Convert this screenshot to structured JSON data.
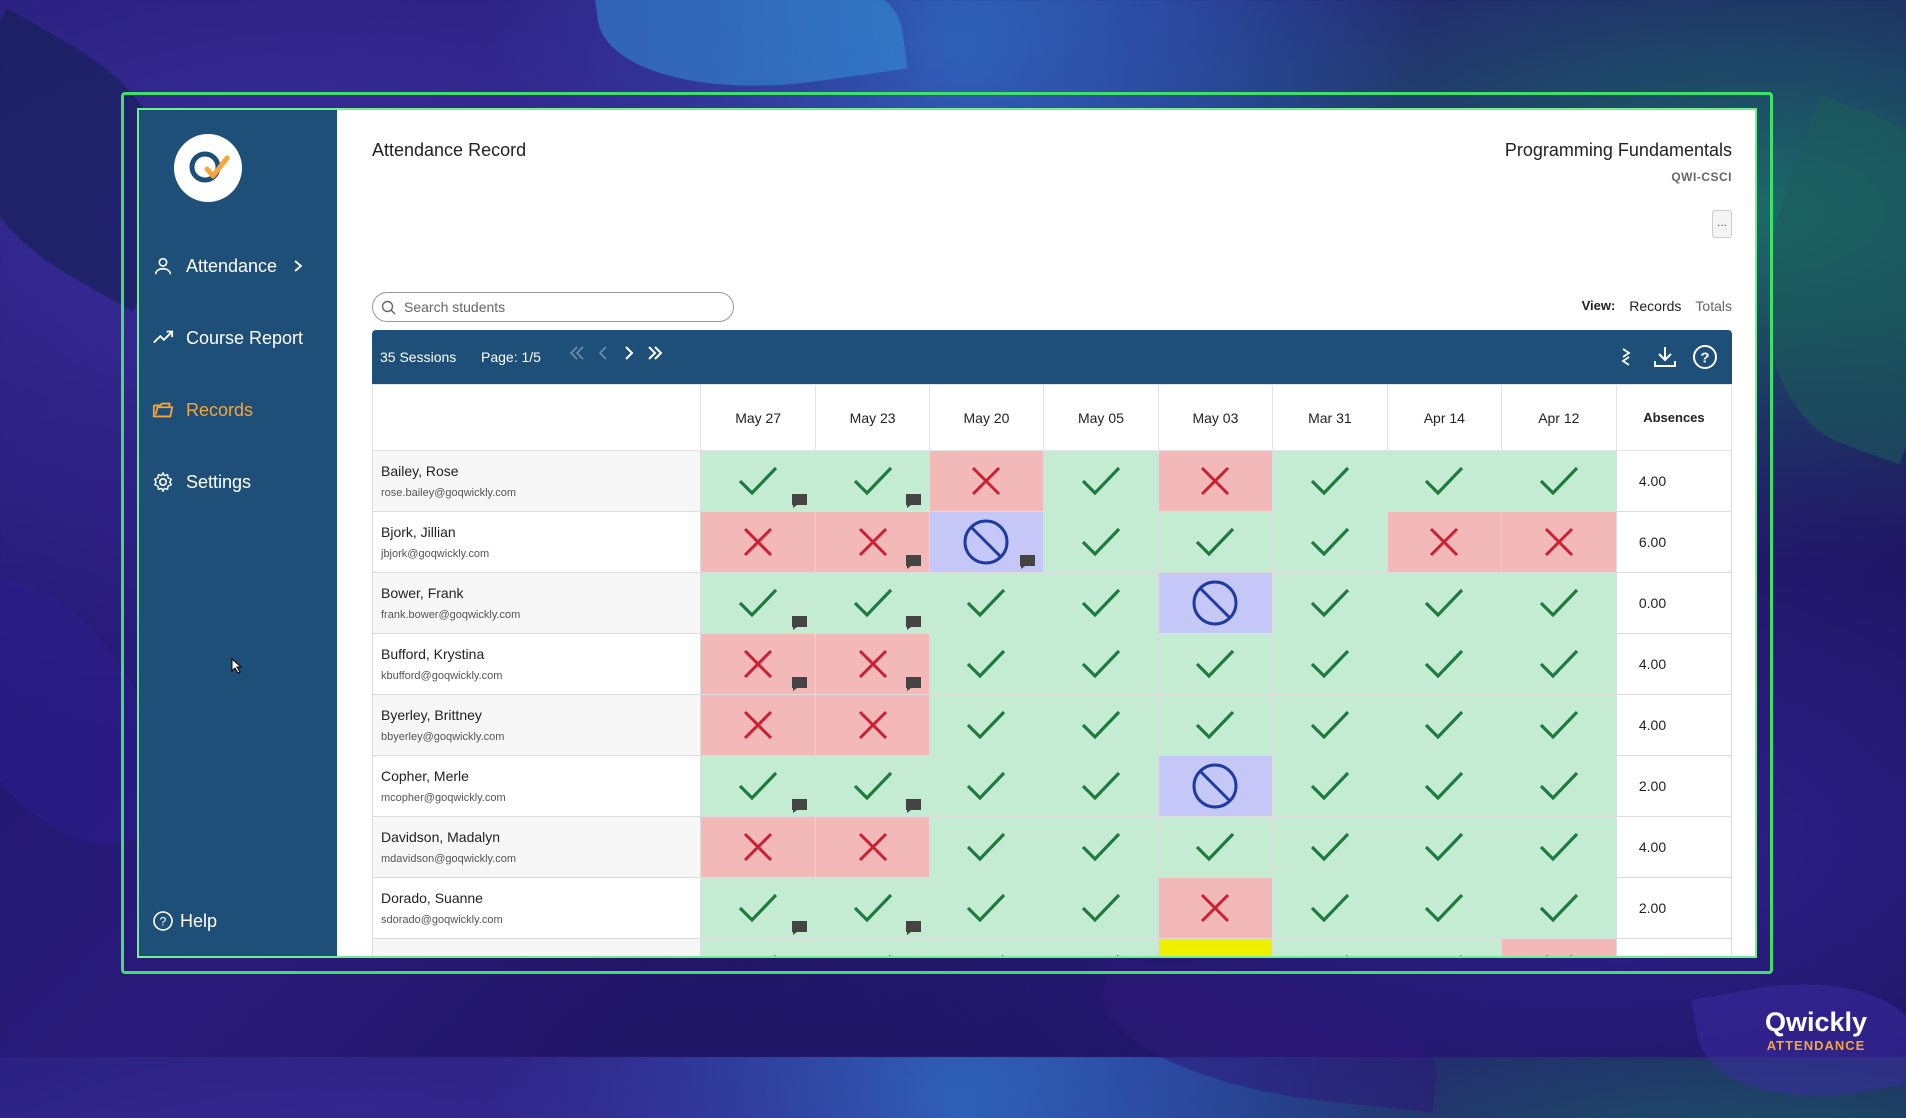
{
  "app": {
    "title": "Attendance Record",
    "course_name": "Programming Fundamentals",
    "course_code": "QWI-CSCI",
    "more_label": "..."
  },
  "sidebar": {
    "items": [
      {
        "label": "Attendance",
        "icon": "person-icon",
        "active": false
      },
      {
        "label": "Course Report",
        "icon": "trend-icon",
        "active": false
      },
      {
        "label": "Records",
        "icon": "folder-icon",
        "active": true
      },
      {
        "label": "Settings",
        "icon": "gear-icon",
        "active": false
      }
    ],
    "help_label": "Help"
  },
  "search": {
    "placeholder": "Search students"
  },
  "view": {
    "label": "View:",
    "records": "Records",
    "totals": "Totals"
  },
  "toolbar": {
    "sessions": "35 Sessions",
    "page": "Page: 1/5"
  },
  "table": {
    "columns": [
      "May 27",
      "May 23",
      "May 20",
      "May 05",
      "May 03",
      "Mar 31",
      "Apr 14",
      "Apr 12"
    ],
    "absences_header": "Absences",
    "rows": [
      {
        "name": "Bailey, Rose",
        "email": "rose.bailey@goqwickly.com",
        "cells": [
          "P",
          "P",
          "A",
          "P",
          "A",
          "P",
          "P",
          "P"
        ],
        "comments": [
          1,
          1,
          0,
          0,
          0,
          0,
          0,
          0
        ],
        "absences": "4.00"
      },
      {
        "name": "Bjork, Jillian",
        "email": "jbjork@goqwickly.com",
        "cells": [
          "A",
          "A",
          "E",
          "P",
          "P",
          "P",
          "A",
          "A"
        ],
        "comments": [
          0,
          1,
          1,
          0,
          0,
          0,
          0,
          0
        ],
        "absences": "6.00"
      },
      {
        "name": "Bower, Frank",
        "email": "frank.bower@goqwickly.com",
        "cells": [
          "P",
          "P",
          "P",
          "P",
          "E",
          "P",
          "P",
          "P"
        ],
        "comments": [
          1,
          1,
          0,
          0,
          0,
          0,
          0,
          0
        ],
        "absences": "0.00"
      },
      {
        "name": "Bufford, Krystina",
        "email": "kbufford@goqwickly.com",
        "cells": [
          "A",
          "A",
          "P",
          "P",
          "P",
          "P",
          "P",
          "P"
        ],
        "comments": [
          1,
          1,
          0,
          0,
          0,
          0,
          0,
          0
        ],
        "absences": "4.00"
      },
      {
        "name": "Byerley, Brittney",
        "email": "bbyerley@goqwickly.com",
        "cells": [
          "A",
          "A",
          "P",
          "P",
          "P",
          "P",
          "P",
          "P"
        ],
        "comments": [
          0,
          0,
          0,
          0,
          0,
          0,
          0,
          0
        ],
        "absences": "4.00"
      },
      {
        "name": "Copher, Merle",
        "email": "mcopher@goqwickly.com",
        "cells": [
          "P",
          "P",
          "P",
          "P",
          "E",
          "P",
          "P",
          "P"
        ],
        "comments": [
          1,
          1,
          0,
          0,
          0,
          0,
          0,
          0
        ],
        "absences": "2.00"
      },
      {
        "name": "Davidson, Madalyn",
        "email": "mdavidson@goqwickly.com",
        "cells": [
          "A",
          "A",
          "P",
          "P",
          "P",
          "P",
          "P",
          "P"
        ],
        "comments": [
          0,
          0,
          0,
          0,
          0,
          0,
          0,
          0
        ],
        "absences": "4.00"
      },
      {
        "name": "Dorado, Suanne",
        "email": "sdorado@goqwickly.com",
        "cells": [
          "P",
          "P",
          "P",
          "P",
          "A",
          "P",
          "P",
          "P"
        ],
        "comments": [
          1,
          1,
          0,
          0,
          0,
          0,
          0,
          0
        ],
        "absences": "2.00"
      },
      {
        "name": "",
        "email": "",
        "cells": [
          "P",
          "P",
          "P",
          "P",
          "L",
          "P",
          "P",
          "A"
        ],
        "comments": [
          0,
          0,
          0,
          0,
          0,
          0,
          0,
          0
        ],
        "absences": ""
      }
    ]
  },
  "colors": {
    "sidebar": "#1e4f78",
    "accent": "#f5a53b",
    "present": "#c4ecd2",
    "absent": "#f3b8b8",
    "excused": "#c5c8f7",
    "late": "#eef000",
    "frame": "#3fe06a"
  },
  "watermark": {
    "brand": "Qwickly",
    "sub": "ATTENDANCE"
  }
}
